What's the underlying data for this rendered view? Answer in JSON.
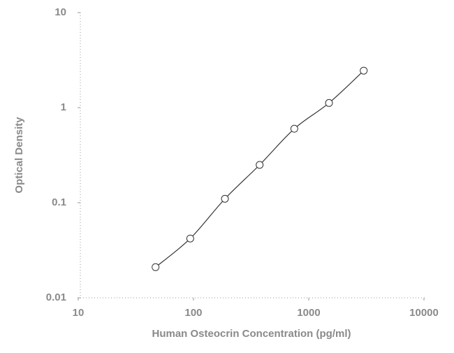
{
  "chart_data": {
    "type": "line",
    "x_label": "Human Osteocrin Concentration (pg/ml)",
    "y_label": "Optical Density",
    "log_x": true,
    "log_y": true,
    "markers": true,
    "xlim": [
      10,
      10000
    ],
    "xticks": [
      10,
      100,
      1000,
      10000
    ],
    "ylim": [
      0.01,
      10
    ],
    "yticks": [
      0.01,
      0.1,
      1,
      10
    ],
    "series": [
      {
        "color": "#333333",
        "x": [
          46.875,
          93.75,
          187.5,
          375,
          750,
          1500,
          3000
        ],
        "values": [
          0.021,
          0.042,
          0.11,
          0.25,
          0.6,
          1.12,
          2.45
        ]
      }
    ]
  }
}
